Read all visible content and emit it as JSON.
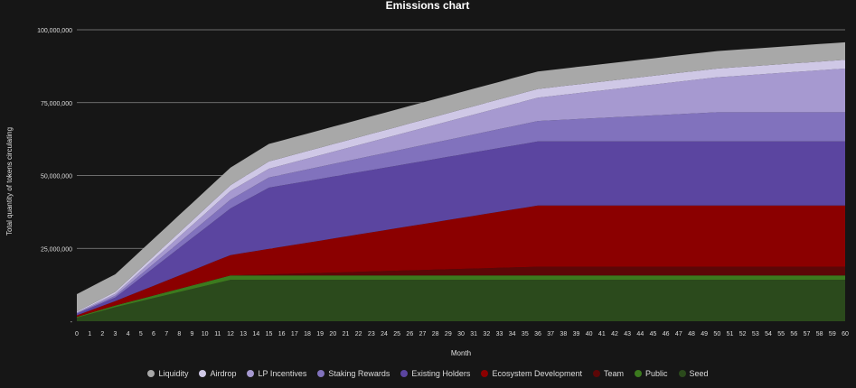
{
  "chart_data": {
    "type": "area",
    "stacked": true,
    "title": "Emissions chart",
    "xlabel": "Month",
    "ylabel": "Total quantity of tokens circulating",
    "x": [
      0,
      1,
      2,
      3,
      4,
      5,
      6,
      7,
      8,
      9,
      10,
      11,
      12,
      13,
      14,
      15,
      16,
      17,
      18,
      19,
      20,
      21,
      22,
      23,
      24,
      25,
      26,
      27,
      28,
      29,
      30,
      31,
      32,
      33,
      34,
      35,
      36,
      37,
      38,
      39,
      40,
      41,
      42,
      43,
      44,
      45,
      46,
      47,
      48,
      49,
      50,
      51,
      52,
      53,
      54,
      55,
      56,
      57,
      58,
      59,
      60
    ],
    "ylim": [
      0,
      100000000
    ],
    "yticks": [
      0,
      25000000,
      50000000,
      75000000,
      100000000
    ],
    "ytick_labels": [
      "-",
      "25,000,000",
      "50,000,000",
      "75,000,000",
      "100,000,000"
    ],
    "grid": true,
    "legend_position": "bottom",
    "series": [
      {
        "name": "Seed",
        "color": "#2b4a1c",
        "keyframes": [
          [
            0,
            1200000
          ],
          [
            3,
            4800000
          ],
          [
            12,
            14200000
          ],
          [
            60,
            14200000
          ]
        ]
      },
      {
        "name": "Public",
        "color": "#3c7a1e",
        "keyframes": [
          [
            0,
            300000
          ],
          [
            3,
            600000
          ],
          [
            12,
            1500000
          ],
          [
            60,
            1500000
          ]
        ]
      },
      {
        "name": "Team",
        "color": "#5c0707",
        "keyframes": [
          [
            0,
            0
          ],
          [
            12,
            0
          ],
          [
            36,
            3000000
          ],
          [
            60,
            3000000
          ]
        ]
      },
      {
        "name": "Ecosystem Development",
        "color": "#8b0000",
        "keyframes": [
          [
            0,
            500000
          ],
          [
            3,
            1500000
          ],
          [
            12,
            7000000
          ],
          [
            36,
            21000000
          ],
          [
            60,
            21000000
          ]
        ]
      },
      {
        "name": "Existing Holders",
        "color": "#5b45a0",
        "keyframes": [
          [
            0,
            600000
          ],
          [
            3,
            1200000
          ],
          [
            12,
            16000000
          ],
          [
            15,
            21000000
          ],
          [
            36,
            22000000
          ],
          [
            60,
            22000000
          ]
        ]
      },
      {
        "name": "Staking Rewards",
        "color": "#8172bd",
        "keyframes": [
          [
            0,
            200000
          ],
          [
            3,
            600000
          ],
          [
            12,
            3000000
          ],
          [
            15,
            3500000
          ],
          [
            36,
            7000000
          ],
          [
            50,
            10000000
          ],
          [
            60,
            10000000
          ]
        ]
      },
      {
        "name": "LP Incentives",
        "color": "#a699d0",
        "keyframes": [
          [
            0,
            200000
          ],
          [
            3,
            700000
          ],
          [
            12,
            3000000
          ],
          [
            15,
            3000000
          ],
          [
            36,
            8000000
          ],
          [
            50,
            12000000
          ],
          [
            60,
            15000000
          ]
        ]
      },
      {
        "name": "Airdrop",
        "color": "#cfc8e6",
        "keyframes": [
          [
            0,
            300000
          ],
          [
            3,
            700000
          ],
          [
            12,
            2000000
          ],
          [
            15,
            2500000
          ],
          [
            36,
            3000000
          ],
          [
            50,
            3000000
          ],
          [
            60,
            3000000
          ]
        ]
      },
      {
        "name": "Liquidity",
        "color": "#a8a8a8",
        "keyframes": [
          [
            0,
            6000000
          ],
          [
            3,
            6000000
          ],
          [
            12,
            6000000
          ],
          [
            15,
            6000000
          ],
          [
            36,
            6000000
          ],
          [
            50,
            6000000
          ],
          [
            60,
            6000000
          ]
        ]
      }
    ],
    "legend_order": [
      "Liquidity",
      "Airdrop",
      "LP Incentives",
      "Staking Rewards",
      "Existing Holders",
      "Ecosystem Development",
      "Team",
      "Public",
      "Seed"
    ]
  }
}
